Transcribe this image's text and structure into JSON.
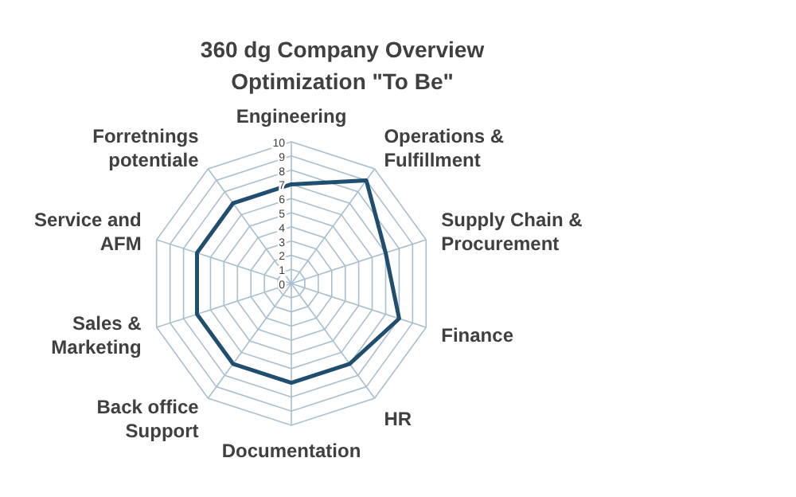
{
  "chart_data": {
    "type": "radar",
    "title": "360 dg Company Overview\nOptimization \"To Be\"",
    "categories": [
      "Engineering",
      "Operations &\nFulfillment",
      "Supply Chain &\nProcurement",
      "Finance",
      "HR",
      "Documentation",
      "Back office\nSupport",
      "Sales &\nMarketing",
      "Service and\nAFM",
      "Forretnings\npotentiale"
    ],
    "series": [
      {
        "color": "#1f4e6e",
        "values": [
          7,
          9,
          7,
          8,
          7,
          7,
          7,
          7,
          7,
          7
        ]
      }
    ],
    "ylim": [
      0,
      10
    ],
    "yticks": [
      0,
      1,
      2,
      3,
      4,
      5,
      6,
      7,
      8,
      9,
      10
    ],
    "grid": true
  }
}
